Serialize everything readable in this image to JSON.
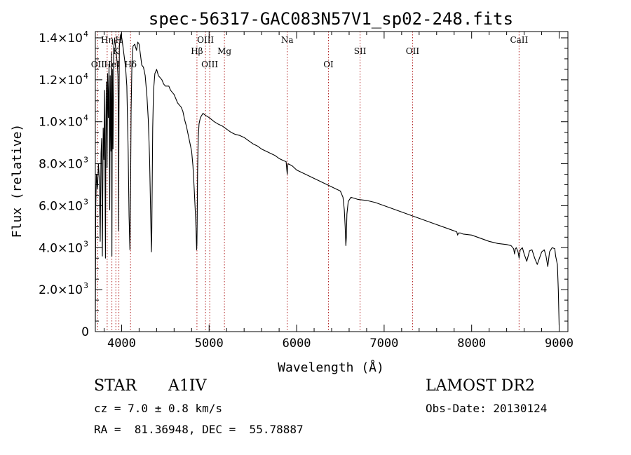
{
  "chart_data": {
    "type": "line",
    "title": "spec-56317-GAC083N57V1_sp02-248.fits",
    "xlabel": "Wavelength (Å)",
    "ylabel": "Flux (relative)",
    "xlim": [
      3700,
      9100
    ],
    "ylim": [
      0,
      14300
    ],
    "x_ticks": [
      4000,
      5000,
      6000,
      7000,
      8000,
      9000
    ],
    "x_tick_labels": [
      "4000",
      "5000",
      "6000",
      "7000",
      "8000",
      "9000"
    ],
    "y_ticks": [
      0,
      2000,
      4000,
      6000,
      8000,
      10000,
      12000,
      14000
    ],
    "y_tick_labels": [
      {
        "mantissa": "0",
        "exp": ""
      },
      {
        "mantissa": "2.0×10",
        "exp": "3"
      },
      {
        "mantissa": "4.0×10",
        "exp": "3"
      },
      {
        "mantissa": "6.0×10",
        "exp": "3"
      },
      {
        "mantissa": "8.0×10",
        "exp": "3"
      },
      {
        "mantissa": "1.0×10",
        "exp": "4"
      },
      {
        "mantissa": "1.2×10",
        "exp": "4"
      },
      {
        "mantissa": "1.4×10",
        "exp": "4"
      }
    ],
    "series": [
      {
        "color": "#000000",
        "x": [
          3700,
          3705,
          3712,
          3725,
          3735,
          3745,
          3755,
          3765,
          3772,
          3780,
          3790,
          3798,
          3806,
          3815,
          3820,
          3826,
          3834,
          3840,
          3848,
          3856,
          3864,
          3870,
          3878,
          3884,
          3889,
          3895,
          3902,
          3910,
          3920,
          3930,
          3940,
          3950,
          3958,
          3963,
          3966,
          3970,
          3975,
          3985,
          3995,
          4005,
          4015,
          4030,
          4045,
          4060,
          4075,
          4085,
          4095,
          4102,
          4109,
          4118,
          4130,
          4150,
          4170,
          4185,
          4200,
          4215,
          4230,
          4250,
          4270,
          4290,
          4305,
          4320,
          4330,
          4336,
          4340,
          4345,
          4350,
          4355,
          4365,
          4380,
          4400,
          4420,
          4440,
          4460,
          4480,
          4500,
          4520,
          4540,
          4560,
          4580,
          4600,
          4620,
          4640,
          4660,
          4680,
          4700,
          4720,
          4740,
          4760,
          4780,
          4800,
          4815,
          4830,
          4840,
          4850,
          4855,
          4858,
          4861,
          4864,
          4868,
          4875,
          4885,
          4900,
          4930,
          4960,
          5000,
          5030,
          5060,
          5100,
          5150,
          5200,
          5250,
          5300,
          5350,
          5400,
          5450,
          5500,
          5550,
          5600,
          5650,
          5700,
          5750,
          5800,
          5850,
          5880,
          5888,
          5893,
          5897,
          5905,
          5950,
          6000,
          6050,
          6100,
          6150,
          6200,
          6250,
          6300,
          6350,
          6400,
          6450,
          6500,
          6530,
          6545,
          6555,
          6563,
          6568,
          6575,
          6590,
          6620,
          6700,
          6800,
          6900,
          7000,
          7100,
          7200,
          7300,
          7400,
          7500,
          7600,
          7700,
          7800,
          7830,
          7840,
          7850,
          7870,
          7900,
          8000,
          8100,
          8200,
          8300,
          8400,
          8450,
          8480,
          8490,
          8500,
          8510,
          8530,
          8542,
          8555,
          8580,
          8600,
          8630,
          8662,
          8690,
          8720,
          8750,
          8800,
          8830,
          8850,
          8870,
          8890,
          8920,
          8950,
          8960,
          8980,
          8990,
          9000
        ],
        "y": [
          500,
          6000,
          7500,
          6800,
          8000,
          7300,
          4300,
          8500,
          9200,
          3600,
          9700,
          8200,
          11500,
          3500,
          9800,
          11900,
          7800,
          12300,
          10200,
          12700,
          5800,
          12200,
          8600,
          13300,
          3600,
          12500,
          8700,
          13500,
          14000,
          13600,
          13200,
          12800,
          12200,
          10200,
          4800,
          10500,
          13600,
          14100,
          14200,
          13900,
          13600,
          13100,
          12600,
          11700,
          8600,
          5500,
          3900,
          6500,
          10500,
          12800,
          13600,
          13700,
          13400,
          13800,
          13700,
          13200,
          12700,
          12600,
          12200,
          11200,
          10100,
          8200,
          6100,
          4700,
          3800,
          4700,
          7000,
          9700,
          11500,
          12300,
          12500,
          12200,
          12100,
          12000,
          11800,
          11700,
          11700,
          11700,
          11500,
          11400,
          11300,
          11100,
          10900,
          10800,
          10700,
          10500,
          10100,
          9800,
          9400,
          9000,
          8600,
          7900,
          6800,
          5900,
          5000,
          4200,
          3900,
          4200,
          5500,
          7600,
          9200,
          9900,
          10200,
          10400,
          10300,
          10200,
          10100,
          10000,
          9900,
          9800,
          9650,
          9500,
          9400,
          9350,
          9250,
          9100,
          8950,
          8850,
          8700,
          8600,
          8500,
          8400,
          8250,
          8150,
          8100,
          7700,
          7500,
          7900,
          8000,
          7900,
          7700,
          7600,
          7500,
          7400,
          7300,
          7200,
          7100,
          7000,
          6900,
          6800,
          6700,
          6400,
          5800,
          5000,
          4100,
          4500,
          5600,
          6200,
          6400,
          6300,
          6250,
          6150,
          6000,
          5850,
          5700,
          5550,
          5400,
          5250,
          5100,
          4950,
          4800,
          4750,
          4600,
          4700,
          4700,
          4650,
          4600,
          4450,
          4300,
          4200,
          4150,
          4100,
          3950,
          3700,
          3950,
          4000,
          3800,
          3500,
          3900,
          4000,
          3700,
          3350,
          3850,
          3900,
          3500,
          3200,
          3800,
          3900,
          3600,
          3100,
          3800,
          4000,
          3950,
          3600,
          3200,
          2000,
          300
        ]
      }
    ],
    "line_markers": [
      {
        "label": "OII",
        "wavelength": 3727,
        "row": 2
      },
      {
        "label": "Hη",
        "wavelength": 3835,
        "row": 0
      },
      {
        "label": "HeI",
        "wavelength": 3889,
        "row": 2
      },
      {
        "label": "K",
        "wavelength": 3934,
        "row": 1
      },
      {
        "label": "H",
        "wavelength": 3969,
        "row": 0
      },
      {
        "label": "Hδ",
        "wavelength": 4102,
        "row": 2
      },
      {
        "label": "Hβ",
        "wavelength": 4861,
        "row": 1
      },
      {
        "label": "OIII",
        "wavelength": 4959,
        "row": 0
      },
      {
        "label": "OIII",
        "wavelength": 5007,
        "row": 2
      },
      {
        "label": "Mg",
        "wavelength": 5175,
        "row": 1
      },
      {
        "label": "Na",
        "wavelength": 5893,
        "row": 0
      },
      {
        "label": "OI",
        "wavelength": 6364,
        "row": 2
      },
      {
        "label": "OII",
        "wavelength": 7325,
        "row": 1
      },
      {
        "label": "SII",
        "wavelength": 6725,
        "row": 1
      },
      {
        "label": "CaII",
        "wavelength": 8542,
        "row": 0
      }
    ]
  },
  "info": {
    "object_class": "STAR",
    "subclass": "A1IV",
    "survey": "LAMOST DR2",
    "cz": "cz = 7.0 ± 0.8 km/s",
    "obs_date": "Obs-Date: 20130124",
    "coords": "RA =  81.36948, DEC =  55.78887"
  }
}
